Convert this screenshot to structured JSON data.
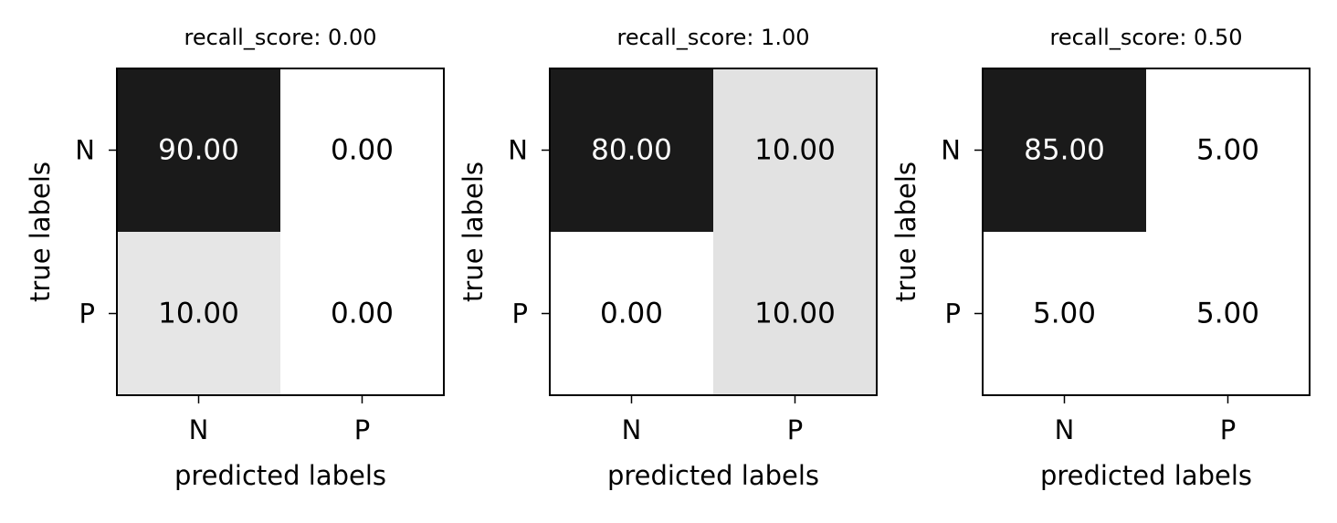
{
  "chart_data": [
    {
      "type": "heatmap",
      "title": "recall_score: 0.00",
      "xlabel": "predicted labels",
      "ylabel": "true labels",
      "x_categories": [
        "N",
        "P"
      ],
      "y_categories": [
        "N",
        "P"
      ],
      "values": [
        [
          90.0,
          0.0
        ],
        [
          10.0,
          0.0
        ]
      ],
      "value_labels": [
        [
          "90.00",
          "0.00"
        ],
        [
          "10.00",
          "0.00"
        ]
      ],
      "colormap": "grayscale"
    },
    {
      "type": "heatmap",
      "title": "recall_score: 1.00",
      "xlabel": "predicted labels",
      "ylabel": "true labels",
      "x_categories": [
        "N",
        "P"
      ],
      "y_categories": [
        "N",
        "P"
      ],
      "values": [
        [
          80.0,
          10.0
        ],
        [
          0.0,
          10.0
        ]
      ],
      "value_labels": [
        [
          "80.00",
          "10.00"
        ],
        [
          "0.00",
          "10.00"
        ]
      ],
      "colormap": "grayscale"
    },
    {
      "type": "heatmap",
      "title": "recall_score: 0.50",
      "xlabel": "predicted labels",
      "ylabel": "true labels",
      "x_categories": [
        "N",
        "P"
      ],
      "y_categories": [
        "N",
        "P"
      ],
      "values": [
        [
          85.0,
          5.0
        ],
        [
          5.0,
          5.0
        ]
      ],
      "value_labels": [
        [
          "85.00",
          "5.00"
        ],
        [
          "5.00",
          "5.00"
        ]
      ],
      "colormap": "grayscale"
    }
  ]
}
